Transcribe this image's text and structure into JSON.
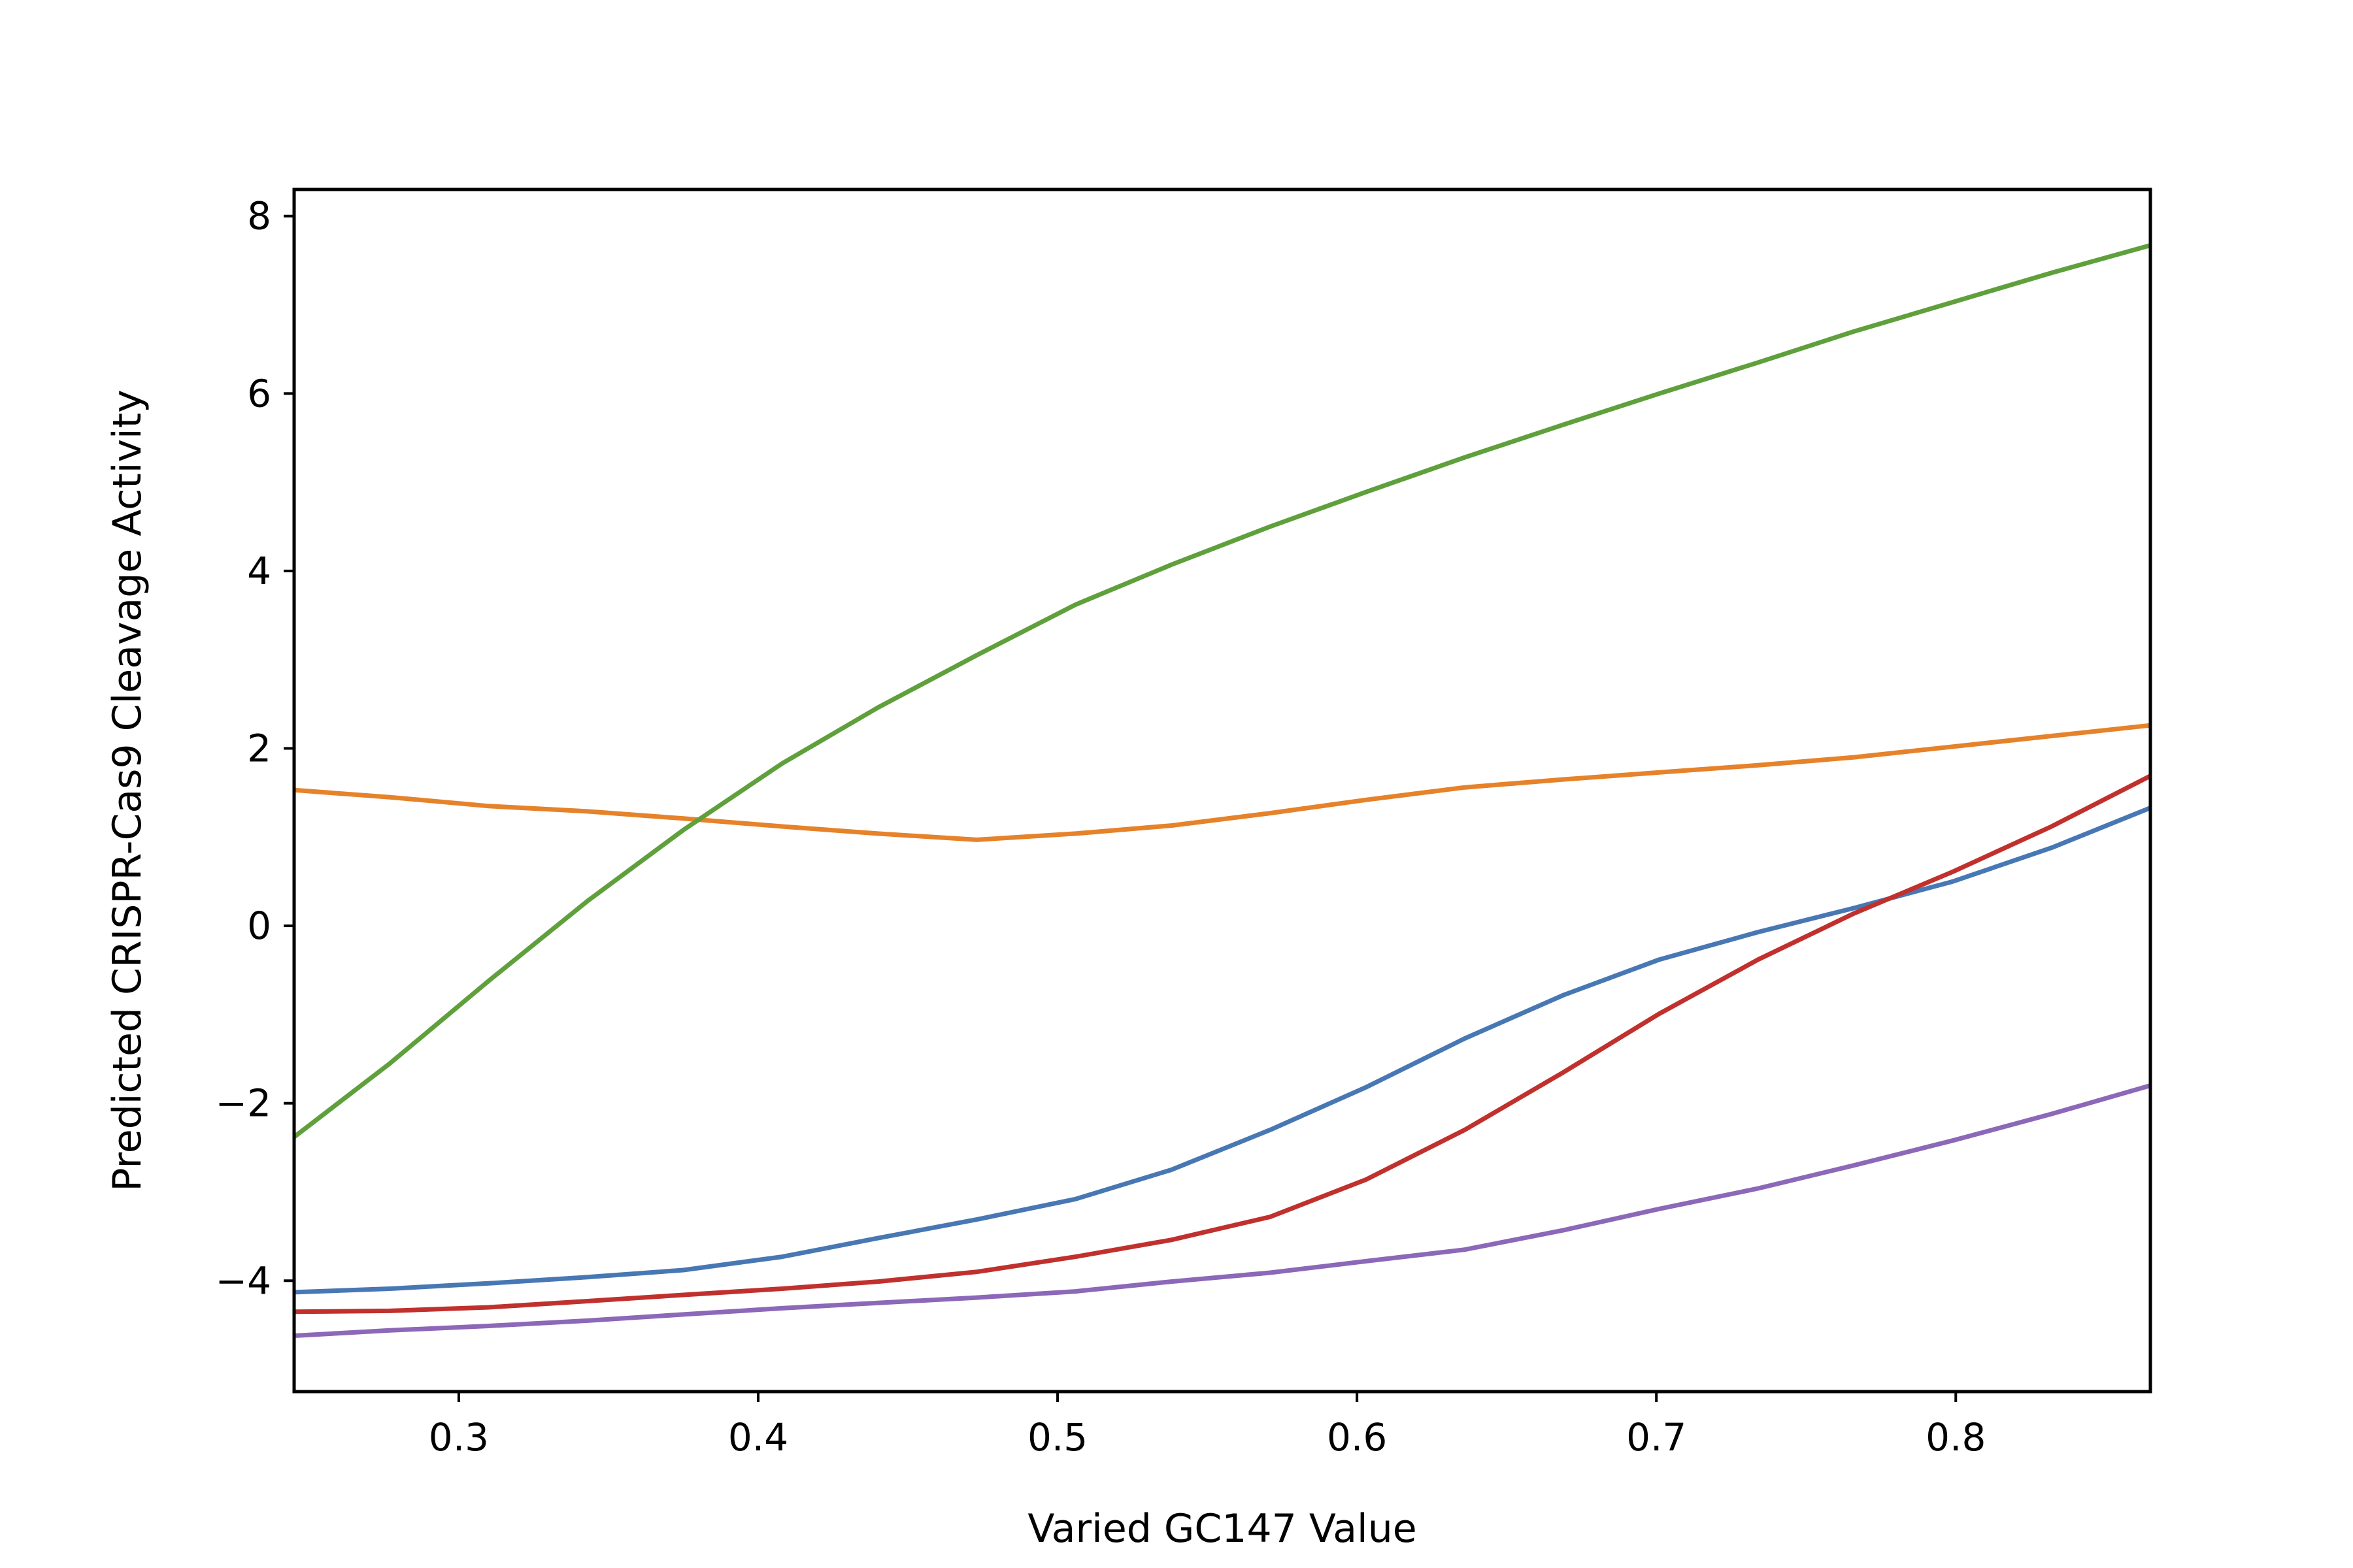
{
  "chart_data": {
    "type": "line",
    "title": "",
    "xlabel": "Varied GC147 Value",
    "ylabel": "Predicted CRISPR-Cas9 Cleavage Activity",
    "xlim": [
      0.245,
      0.865
    ],
    "ylim": [
      -5.25,
      8.3
    ],
    "x_ticks": [
      0.3,
      0.4,
      0.5,
      0.6,
      0.7,
      0.8
    ],
    "x_tick_labels": [
      "0.3",
      "0.4",
      "0.5",
      "0.6",
      "0.7",
      "0.8"
    ],
    "y_ticks": [
      -4,
      -2,
      0,
      2,
      4,
      6,
      8
    ],
    "y_tick_labels": [
      "−4",
      "−2",
      "0",
      "2",
      "4",
      "6",
      "8"
    ],
    "grid": false,
    "legend": false,
    "x": [
      0.245,
      0.277,
      0.31,
      0.343,
      0.375,
      0.408,
      0.44,
      0.473,
      0.506,
      0.538,
      0.571,
      0.603,
      0.636,
      0.669,
      0.701,
      0.734,
      0.766,
      0.799,
      0.832,
      0.865
    ],
    "series": [
      {
        "color": "#4878b4",
        "values": [
          -4.13,
          -4.09,
          -4.03,
          -3.96,
          -3.88,
          -3.73,
          -3.52,
          -3.31,
          -3.08,
          -2.75,
          -2.3,
          -1.82,
          -1.27,
          -0.78,
          -0.38,
          -0.07,
          0.2,
          0.5,
          0.88,
          1.33
        ]
      },
      {
        "color": "#e6822a",
        "values": [
          1.53,
          1.45,
          1.35,
          1.29,
          1.21,
          1.12,
          1.04,
          0.97,
          1.04,
          1.13,
          1.27,
          1.42,
          1.56,
          1.65,
          1.73,
          1.81,
          1.9,
          2.02,
          2.14,
          2.26
        ]
      },
      {
        "color": "#5fa03c",
        "values": [
          -2.38,
          -1.55,
          -0.62,
          0.28,
          1.08,
          1.83,
          2.46,
          3.05,
          3.62,
          4.07,
          4.5,
          4.89,
          5.28,
          5.65,
          6.0,
          6.35,
          6.7,
          7.03,
          7.36,
          7.67
        ]
      },
      {
        "color": "#c0312e",
        "values": [
          -4.35,
          -4.34,
          -4.3,
          -4.23,
          -4.16,
          -4.09,
          -4.01,
          -3.9,
          -3.73,
          -3.54,
          -3.28,
          -2.86,
          -2.3,
          -1.65,
          -0.99,
          -0.38,
          0.14,
          0.61,
          1.12,
          1.69
        ]
      },
      {
        "color": "#8c68b8",
        "values": [
          -4.62,
          -4.56,
          -4.51,
          -4.45,
          -4.38,
          -4.31,
          -4.25,
          -4.19,
          -4.12,
          -4.01,
          -3.91,
          -3.78,
          -3.65,
          -3.43,
          -3.19,
          -2.96,
          -2.7,
          -2.42,
          -2.12,
          -1.8
        ]
      }
    ]
  }
}
